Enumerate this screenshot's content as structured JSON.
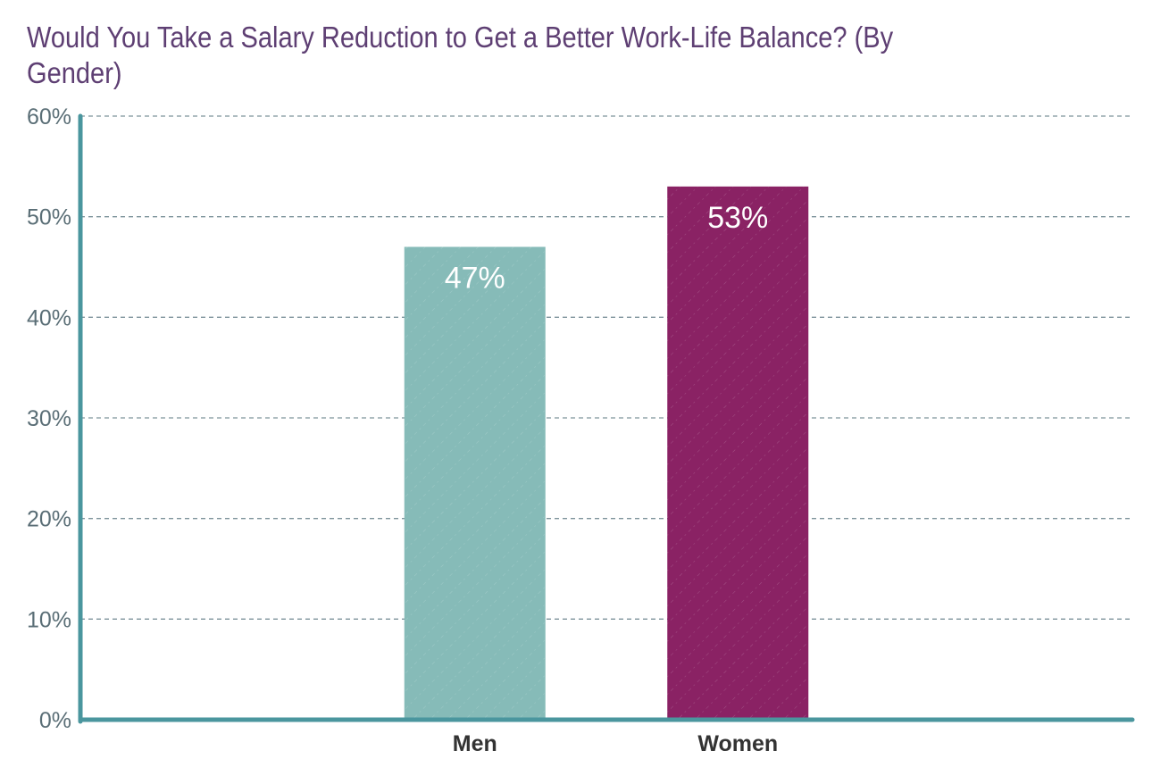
{
  "chart_data": {
    "type": "bar",
    "title": "Would You Take a Salary Reduction to Get a Better Work-Life Balance? (By Gender)",
    "categories": [
      "Men",
      "Women"
    ],
    "values": [
      47,
      53
    ],
    "data_labels": [
      "47%",
      "53%"
    ],
    "colors": [
      "#86bbb8",
      "#8a2264"
    ],
    "xlabel": "",
    "ylabel": "",
    "ylim": [
      0,
      60
    ],
    "yticks": [
      0,
      10,
      20,
      30,
      40,
      50,
      60
    ],
    "ytick_labels": [
      "0%",
      "10%",
      "20%",
      "30%",
      "40%",
      "50%",
      "60%"
    ],
    "grid": true,
    "legend": "none"
  },
  "colors": {
    "axis": "#4a969e",
    "grid": "#7d939b",
    "title": "#5e3f73"
  }
}
